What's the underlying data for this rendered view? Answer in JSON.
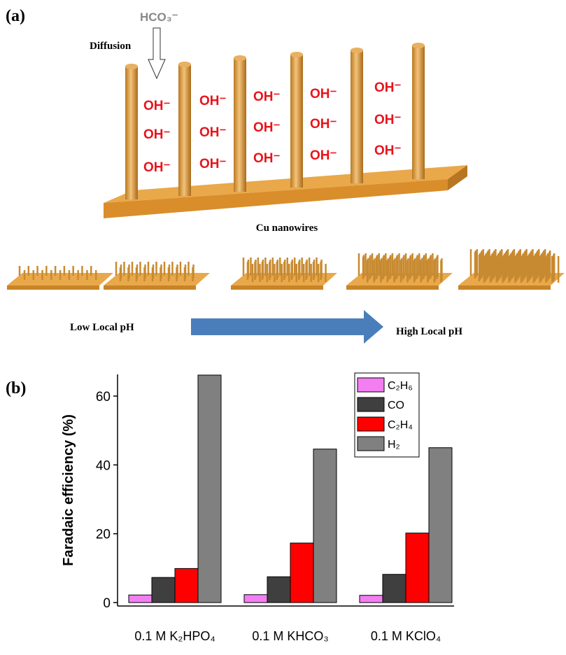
{
  "panel_a": {
    "label": "(a)",
    "ion": "HCO₃⁻",
    "diffusion": "Diffusion",
    "oh_labels": [
      "OH⁻",
      "OH⁻",
      "OH⁻",
      "OH⁻",
      "OH⁻",
      "OH⁻",
      "OH⁻",
      "OH⁻",
      "OH⁻",
      "OH⁻",
      "OH⁻",
      "OH⁻",
      "OH⁻",
      "OH⁻",
      "OH⁻"
    ],
    "caption": "Cu nanowires",
    "low": "Low Local pH",
    "high": "High Local pH"
  },
  "chart_data": {
    "type": "bar",
    "label": "(b)",
    "ylabel": "Faradaic efficiency (%)",
    "categories": [
      "0.1 M K₂HPO₄",
      "0.1 M KHCO₃",
      "0.1 M KClO₄"
    ],
    "series": [
      {
        "name": "C₂H₆",
        "color": "#f27ef2",
        "values": [
          2.2,
          2.3,
          2.1
        ]
      },
      {
        "name": "CO",
        "color": "#3f3f3f",
        "values": [
          7.3,
          7.5,
          8.2
        ]
      },
      {
        "name": "C₂H₄",
        "color": "#ff0000",
        "values": [
          9.9,
          17.3,
          20.2
        ]
      },
      {
        "name": "H₂",
        "color": "#808080",
        "values": [
          66.1,
          44.6,
          45.0
        ]
      }
    ],
    "ylim": [
      -1,
      66.3
    ],
    "yticks": [
      0,
      20,
      40,
      60
    ],
    "legend": "upper-right"
  }
}
